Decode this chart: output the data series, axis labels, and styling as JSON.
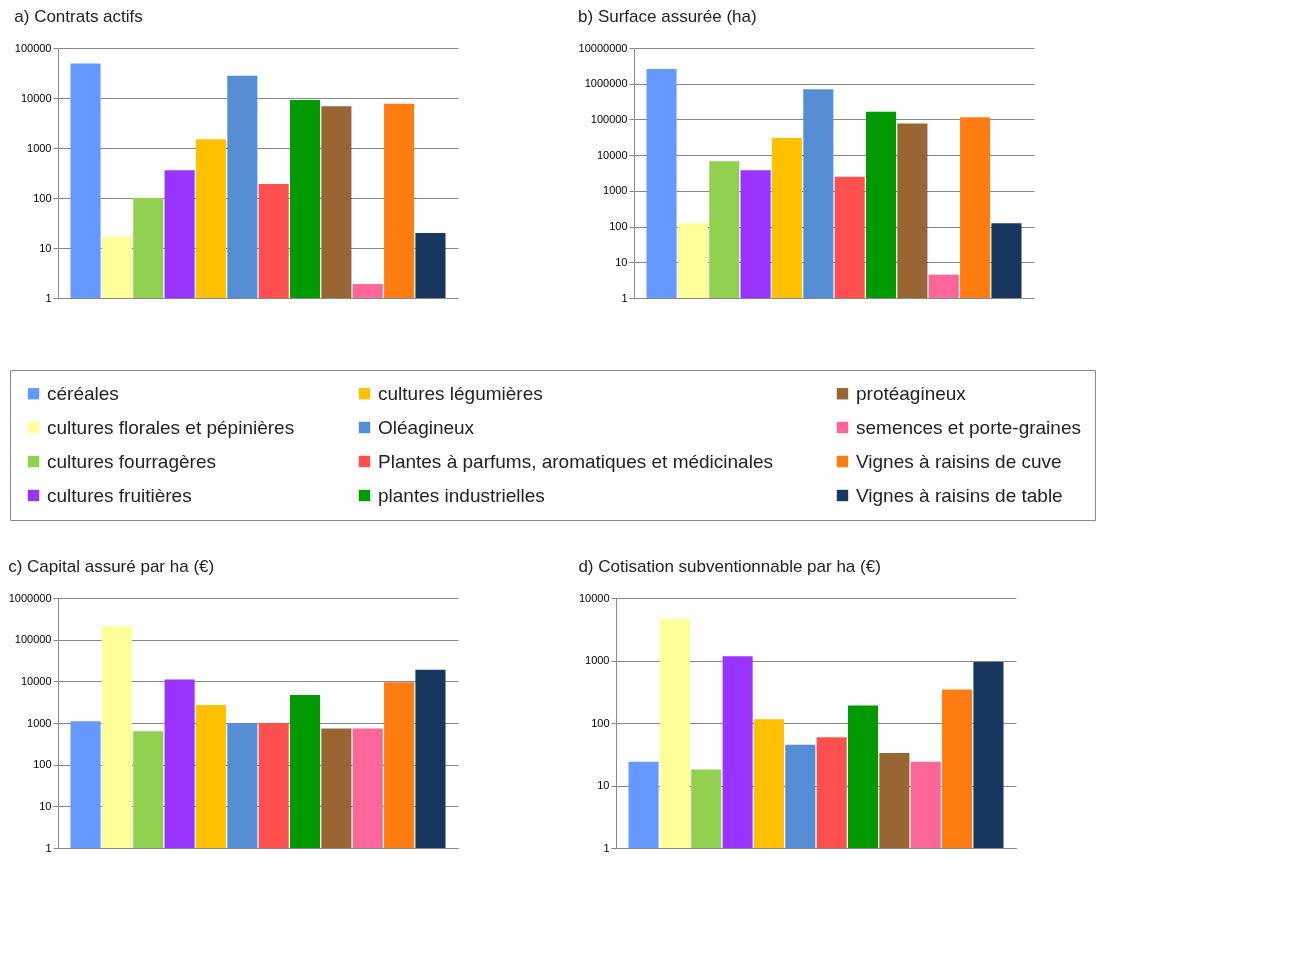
{
  "chart_data": [
    {
      "type": "bar",
      "title": "a) Contrats actifs",
      "categories": [
        null
      ],
      "series": [
        {
          "name": "céréales",
          "color": "#6699ff",
          "values": [
            49000
          ]
        },
        {
          "name": "cultures florales et pépinières",
          "color": "#ffff99",
          "values": [
            17
          ]
        },
        {
          "name": "cultures fourragères",
          "color": "#92d050",
          "values": [
            100
          ]
        },
        {
          "name": "cultures fruitières",
          "color": "#9933ff",
          "values": [
            360
          ]
        },
        {
          "name": "cultures légumières",
          "color": "#ffc000",
          "values": [
            1500
          ]
        },
        {
          "name": "Oléagineux",
          "color": "#558ed5",
          "values": [
            28000
          ]
        },
        {
          "name": "Plantes à parfums, aromatiques et médicinales",
          "color": "#ff5050",
          "values": [
            190
          ]
        },
        {
          "name": "plantes industrielles",
          "color": "#009900",
          "values": [
            9100
          ]
        },
        {
          "name": "protéagineux",
          "color": "#996633",
          "values": [
            6800
          ]
        },
        {
          "name": "semences et porte-graines",
          "color": "#ff6699",
          "values": [
            1.9
          ]
        },
        {
          "name": "Vignes à raisins de cuve",
          "color": "#ff7c10",
          "values": [
            7700
          ]
        },
        {
          "name": "Vignes à raisins de table",
          "color": "#17375e",
          "values": [
            20
          ]
        }
      ],
      "log": "y",
      "ylim": [
        1,
        100000
      ],
      "yticks": [
        1,
        10,
        100,
        1000,
        10000,
        100000
      ],
      "grid": "y",
      "tick_labels": "y",
      "legend": "bottom"
    },
    {
      "type": "bar",
      "title": "b) Surface assurée (ha)",
      "categories": [
        null
      ],
      "series": [
        {
          "name": "céréales",
          "color": "#6699ff",
          "values": [
            2600000
          ]
        },
        {
          "name": "cultures florales et pépinières",
          "color": "#ffff99",
          "values": [
            124
          ]
        },
        {
          "name": "cultures fourragères",
          "color": "#92d050",
          "values": [
            6700
          ]
        },
        {
          "name": "cultures fruitières",
          "color": "#9933ff",
          "values": [
            3800
          ]
        },
        {
          "name": "cultures légumières",
          "color": "#ffc000",
          "values": [
            30000
          ]
        },
        {
          "name": "Oléagineux",
          "color": "#558ed5",
          "values": [
            700000
          ]
        },
        {
          "name": "Plantes à parfums, aromatiques et médicinales",
          "color": "#ff5050",
          "values": [
            2500
          ]
        },
        {
          "name": "plantes industrielles",
          "color": "#009900",
          "values": [
            163000
          ]
        },
        {
          "name": "protéagineux",
          "color": "#996633",
          "values": [
            77000
          ]
        },
        {
          "name": "semences et porte-graines",
          "color": "#ff6699",
          "values": [
            4.5
          ]
        },
        {
          "name": "Vignes à raisins de cuve",
          "color": "#ff7c10",
          "values": [
            115000
          ]
        },
        {
          "name": "Vignes à raisins de table",
          "color": "#17375e",
          "values": [
            124
          ]
        }
      ],
      "log": "y",
      "ylim": [
        1,
        10000000
      ],
      "yticks": [
        1,
        10,
        100,
        1000,
        10000,
        100000,
        1000000,
        10000000
      ],
      "grid": "y",
      "tick_labels": "y",
      "legend": "bottom"
    },
    {
      "type": "bar",
      "title": "c) Capital assuré par ha (€)",
      "categories": [
        null
      ],
      "series": [
        {
          "name": "céréales",
          "color": "#6699ff",
          "values": [
            1100
          ]
        },
        {
          "name": "cultures florales et pépinières",
          "color": "#ffff99",
          "values": [
            210000
          ]
        },
        {
          "name": "cultures fourragères",
          "color": "#92d050",
          "values": [
            630
          ]
        },
        {
          "name": "cultures fruitières",
          "color": "#9933ff",
          "values": [
            11000
          ]
        },
        {
          "name": "cultures légumières",
          "color": "#ffc000",
          "values": [
            2700
          ]
        },
        {
          "name": "Oléagineux",
          "color": "#558ed5",
          "values": [
            1000
          ]
        },
        {
          "name": "Plantes à parfums, aromatiques et médicinales",
          "color": "#ff5050",
          "values": [
            1000
          ]
        },
        {
          "name": "plantes industrielles",
          "color": "#009900",
          "values": [
            4700
          ]
        },
        {
          "name": "protéagineux",
          "color": "#996633",
          "values": [
            740
          ]
        },
        {
          "name": "semences et porte-graines",
          "color": "#ff6699",
          "values": [
            740
          ]
        },
        {
          "name": "Vignes à raisins de cuve",
          "color": "#ff7c10",
          "values": [
            9500
          ]
        },
        {
          "name": "Vignes à raisins de table",
          "color": "#17375e",
          "values": [
            19000
          ]
        }
      ],
      "log": "y",
      "ylim": [
        1,
        1000000
      ],
      "yticks": [
        1,
        10,
        100,
        1000,
        10000,
        100000,
        1000000
      ],
      "grid": "y",
      "tick_labels": "y",
      "legend": "top"
    },
    {
      "type": "bar",
      "title": "d) Cotisation subventionnable par ha (€)",
      "categories": [
        null
      ],
      "series": [
        {
          "name": "céréales",
          "color": "#6699ff",
          "values": [
            24
          ]
        },
        {
          "name": "cultures florales et pépinières",
          "color": "#ffff99",
          "values": [
            4600
          ]
        },
        {
          "name": "cultures fourragères",
          "color": "#92d050",
          "values": [
            18
          ]
        },
        {
          "name": "cultures fruitières",
          "color": "#9933ff",
          "values": [
            1170
          ]
        },
        {
          "name": "cultures légumières",
          "color": "#ffc000",
          "values": [
            115
          ]
        },
        {
          "name": "Oléagineux",
          "color": "#558ed5",
          "values": [
            45
          ]
        },
        {
          "name": "Plantes à parfums, aromatiques et médicinales",
          "color": "#ff5050",
          "values": [
            59
          ]
        },
        {
          "name": "plantes industrielles",
          "color": "#009900",
          "values": [
            190
          ]
        },
        {
          "name": "protéagineux",
          "color": "#996633",
          "values": [
            33
          ]
        },
        {
          "name": "semences et porte-graines",
          "color": "#ff6699",
          "values": [
            24
          ]
        },
        {
          "name": "Vignes à raisins de cuve",
          "color": "#ff7c10",
          "values": [
            345
          ]
        },
        {
          "name": "Vignes à raisins de table",
          "color": "#17375e",
          "values": [
            950
          ]
        }
      ],
      "log": "y",
      "ylim": [
        1,
        10000
      ],
      "yticks": [
        1,
        10,
        100,
        1000,
        10000
      ],
      "grid": "y",
      "tick_labels": "y",
      "legend": "top"
    }
  ]
}
